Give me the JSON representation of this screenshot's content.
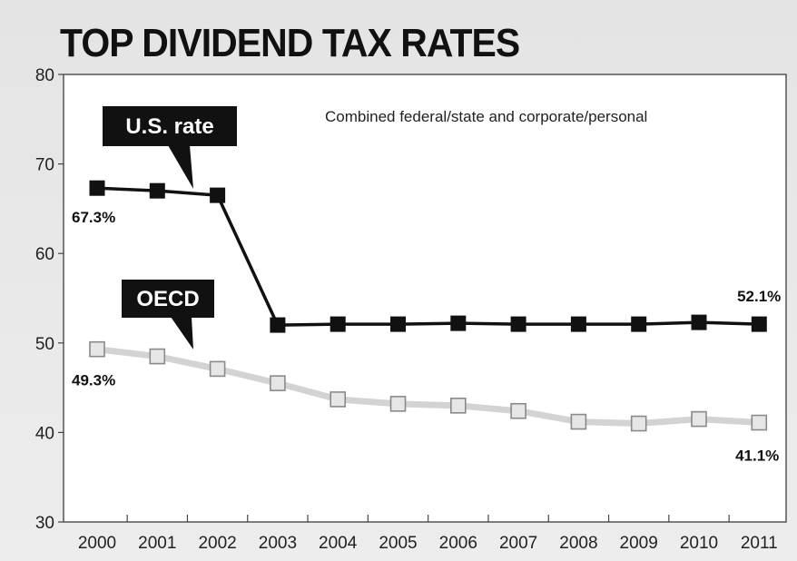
{
  "chart_data": {
    "type": "line",
    "title": "TOP DIVIDEND TAX RATES",
    "subtitle": "Combined federal/state and corporate/personal",
    "categories": [
      "2000",
      "2001",
      "2002",
      "2003",
      "2004",
      "2005",
      "2006",
      "2007",
      "2008",
      "2009",
      "2010",
      "2011"
    ],
    "ylim": [
      30,
      80
    ],
    "yticks": [
      30,
      40,
      50,
      60,
      70,
      80
    ],
    "series": [
      {
        "name": "U.S. rate",
        "color": "#111111",
        "values": [
          67.3,
          67.0,
          66.5,
          52.0,
          52.1,
          52.1,
          52.2,
          52.1,
          52.1,
          52.1,
          52.3,
          52.1
        ],
        "labels": [
          {
            "index": 0,
            "text": "67.3%"
          },
          {
            "index": 11,
            "text": "52.1%"
          }
        ]
      },
      {
        "name": "OECD",
        "color": "#d3d3d3",
        "values": [
          49.3,
          48.5,
          47.1,
          45.5,
          43.7,
          43.2,
          43.0,
          42.4,
          41.2,
          41.0,
          41.5,
          41.1
        ],
        "labels": [
          {
            "index": 0,
            "text": "49.3%"
          },
          {
            "index": 11,
            "text": "41.1%"
          }
        ]
      }
    ],
    "grid": false
  }
}
